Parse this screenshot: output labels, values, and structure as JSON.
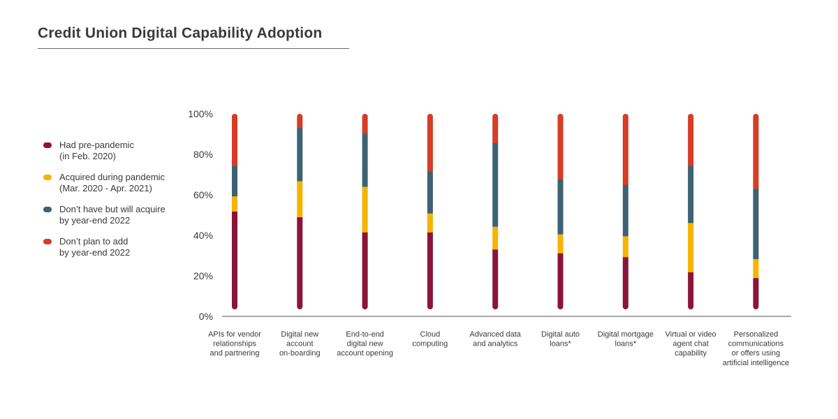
{
  "chart_data": {
    "type": "bar",
    "title": "Credit Union Digital Capability Adoption",
    "stacked": true,
    "ylim": [
      0,
      100
    ],
    "yticks": [
      "0%",
      "20%",
      "40%",
      "60%",
      "80%",
      "100%"
    ],
    "categories": [
      [
        "APIs for vendor",
        "relationships",
        "and partnering"
      ],
      [
        "Digital new",
        "account",
        "on-boarding"
      ],
      [
        "End-to-end",
        "digital new",
        "account opening"
      ],
      [
        "Cloud",
        "computing"
      ],
      [
        "Advanced data",
        "and analytics"
      ],
      [
        "Digital auto",
        "loans*"
      ],
      [
        "Digital mortgage",
        "loans*"
      ],
      [
        "Virtual or video",
        "agent chat",
        "capability"
      ],
      [
        "Personalized",
        "communications",
        "or offers using",
        "artificial intelligence"
      ]
    ],
    "series": [
      {
        "name": "Had pre-pandemic",
        "label": [
          "Had pre-pandemic",
          "(in Feb. 2020)"
        ],
        "color": "#8a1538",
        "values": [
          50,
          47,
          39,
          39,
          30,
          28,
          26,
          18,
          15
        ]
      },
      {
        "name": "Acquired during pandemic",
        "label": [
          "Acquired during pandemic",
          "(Mar. 2020 - Apr. 2021)"
        ],
        "color": "#f5b400",
        "values": [
          8,
          19,
          24,
          10,
          12,
          10,
          11,
          26,
          10
        ]
      },
      {
        "name": "Don't have but will acquire by year-end 2022",
        "label": [
          "Don’t have but will acquire",
          "by year-end 2022"
        ],
        "color": "#3d6273",
        "values": [
          16,
          28,
          28,
          22,
          44,
          29,
          27,
          30,
          37
        ]
      },
      {
        "name": "Don't plan to add by year-end 2022",
        "label": [
          "Don’t plan to add",
          "by year-end 2022"
        ],
        "color": "#d63c26",
        "values": [
          26,
          6,
          9,
          29,
          14,
          33,
          36,
          26,
          38
        ]
      }
    ]
  }
}
